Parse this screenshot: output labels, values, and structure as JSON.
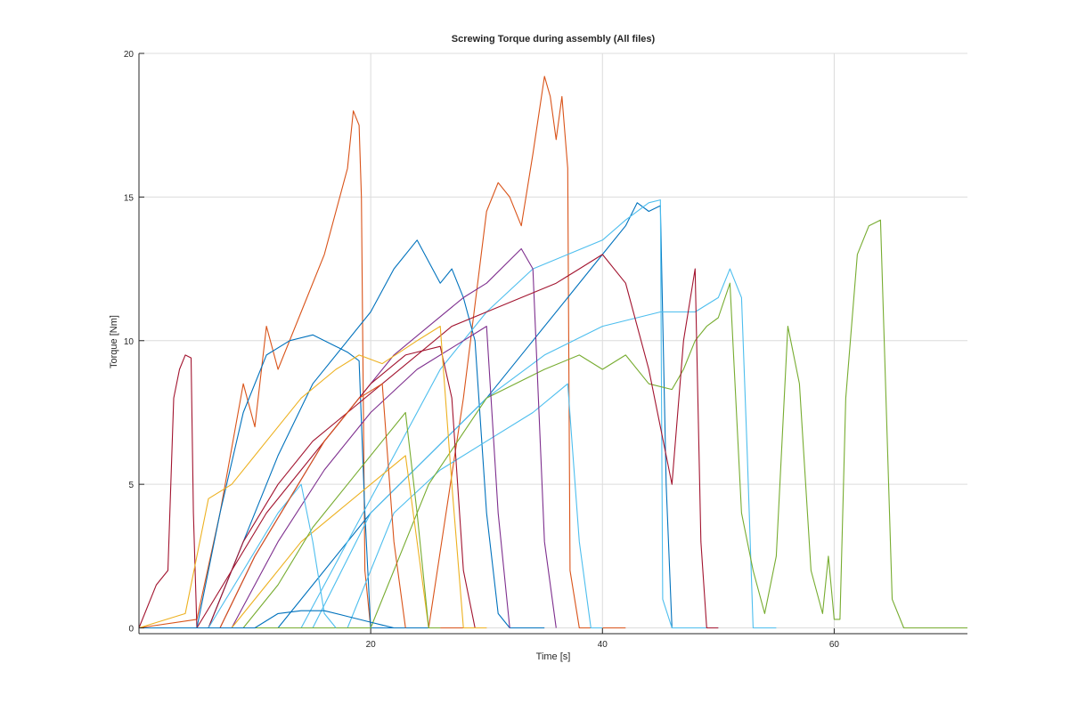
{
  "chart_data": {
    "type": "line",
    "title": "Screwing Torque during assembly (All files)",
    "xlabel": "Time [s]",
    "ylabel": "Torque [Nm]",
    "xlim": [
      0,
      71.5
    ],
    "ylim": [
      -0.2,
      20
    ],
    "xticks": [
      20,
      40,
      60
    ],
    "yticks": [
      0,
      5,
      10,
      15,
      20
    ],
    "grid": true,
    "series": [
      {
        "color": "#D95319",
        "x": [
          0,
          5,
          7,
          9,
          10,
          11,
          12,
          14,
          16,
          17,
          18,
          18.5,
          19,
          19.2,
          19.5,
          20,
          30
        ],
        "y": [
          0,
          0.3,
          4,
          8.5,
          7,
          10.5,
          9,
          11,
          13,
          14.5,
          16,
          18,
          17.5,
          15,
          2,
          0,
          0
        ]
      },
      {
        "color": "#D95319",
        "x": [
          0,
          25,
          28,
          30,
          31,
          32,
          33,
          34,
          35,
          35.5,
          36,
          36.5,
          37,
          37.2,
          38,
          42
        ],
        "y": [
          0,
          0,
          8,
          14.5,
          15.5,
          15,
          14,
          16.5,
          19.2,
          18.5,
          17,
          18.5,
          16,
          2,
          0,
          0
        ]
      },
      {
        "color": "#A2142F",
        "x": [
          0,
          1.5,
          2.5,
          3,
          3.5,
          4,
          4.5,
          4.7,
          5,
          10
        ],
        "y": [
          0,
          1.5,
          2,
          8,
          9,
          9.5,
          9.4,
          4,
          0,
          0
        ]
      },
      {
        "color": "#0072BD",
        "x": [
          0,
          5,
          7,
          9,
          11,
          13,
          15,
          17,
          18,
          19,
          19.5,
          20,
          25
        ],
        "y": [
          0,
          0,
          4,
          7.5,
          9.5,
          10,
          10.2,
          9.8,
          9.6,
          9.3,
          4,
          0,
          0
        ]
      },
      {
        "color": "#0072BD",
        "x": [
          0,
          6,
          9,
          12,
          15,
          18,
          20,
          22,
          24,
          26,
          27,
          28,
          29,
          30,
          31,
          32,
          35
        ],
        "y": [
          0,
          0,
          3,
          6,
          8.5,
          10,
          11,
          12.5,
          13.5,
          12,
          12.5,
          11.5,
          10,
          4,
          0.5,
          0,
          0
        ]
      },
      {
        "color": "#0072BD",
        "x": [
          0,
          12,
          16,
          20,
          25,
          30,
          34,
          37,
          40,
          42,
          43,
          44,
          45,
          45.5,
          46,
          50
        ],
        "y": [
          0,
          0,
          2,
          4,
          6,
          8,
          10,
          11.5,
          13,
          14,
          14.8,
          14.5,
          14.7,
          5,
          0,
          0
        ]
      },
      {
        "color": "#4DBEEE",
        "x": [
          0,
          14,
          18,
          22,
          26,
          30,
          34,
          37,
          40,
          42,
          44,
          45,
          45.2,
          46,
          50
        ],
        "y": [
          0,
          0,
          3,
          6,
          9,
          11,
          12.5,
          13,
          13.5,
          14.2,
          14.8,
          14.9,
          1,
          0,
          0
        ]
      },
      {
        "color": "#4DBEEE",
        "x": [
          0,
          15,
          20,
          25,
          30,
          35,
          40,
          45,
          48,
          50,
          51,
          52,
          52.5,
          53,
          55
        ],
        "y": [
          0,
          0,
          4,
          6,
          8,
          9.5,
          10.5,
          11,
          11,
          11.5,
          12.5,
          11.5,
          6,
          0,
          0
        ]
      },
      {
        "color": "#4DBEEE",
        "x": [
          0,
          18,
          22,
          26,
          30,
          34,
          37,
          38,
          39,
          40
        ],
        "y": [
          0,
          0,
          4,
          5.5,
          6.5,
          7.5,
          8.5,
          3,
          0,
          0
        ]
      },
      {
        "color": "#77AC30",
        "x": [
          0,
          20,
          25,
          30,
          35,
          38,
          40,
          42,
          44,
          46,
          47,
          48,
          49,
          50,
          51,
          52,
          53,
          54,
          55,
          56,
          57,
          58,
          59,
          59.5,
          60,
          60.5,
          61,
          62,
          63,
          64,
          65,
          66,
          71.5
        ],
        "y": [
          0,
          0,
          5,
          8,
          9,
          9.5,
          9,
          9.5,
          8.5,
          8.3,
          9,
          10,
          10.5,
          10.8,
          12,
          4,
          2,
          0.5,
          2.5,
          10.5,
          8.5,
          2,
          0.5,
          2.5,
          0.3,
          0.3,
          8,
          13,
          14,
          14.2,
          1,
          0,
          0
        ]
      },
      {
        "color": "#7E2F8E",
        "x": [
          0,
          7,
          10,
          13,
          16,
          19,
          22,
          25,
          28,
          30,
          32,
          33,
          34,
          35,
          36
        ],
        "y": [
          0,
          0,
          2.5,
          4.5,
          6.5,
          8,
          9.5,
          10.5,
          11.5,
          12,
          12.8,
          13.2,
          12.5,
          3,
          0
        ]
      },
      {
        "color": "#7E2F8E",
        "x": [
          0,
          8,
          12,
          16,
          20,
          24,
          28,
          30,
          31,
          32
        ],
        "y": [
          0,
          0,
          3,
          5.5,
          7.5,
          9,
          10,
          10.5,
          4,
          0
        ]
      },
      {
        "color": "#A2142F",
        "x": [
          0,
          6,
          9,
          12,
          15,
          18,
          21,
          24,
          27,
          30,
          33,
          36,
          38,
          40,
          42,
          44,
          46,
          47,
          48,
          48.5,
          49,
          50
        ],
        "y": [
          0,
          0,
          3,
          5,
          6.5,
          7.5,
          8.5,
          9.5,
          10.5,
          11,
          11.5,
          12,
          12.5,
          13,
          12,
          9,
          5,
          10,
          12.5,
          3,
          0,
          0
        ]
      },
      {
        "color": "#A2142F",
        "x": [
          0,
          5,
          8,
          11,
          14,
          17,
          20,
          23,
          26,
          27,
          28,
          29
        ],
        "y": [
          0,
          0,
          2,
          4,
          5.5,
          7,
          8.5,
          9.5,
          9.8,
          8,
          2,
          0
        ]
      },
      {
        "color": "#EDB120",
        "x": [
          0,
          4,
          6,
          8,
          11,
          14,
          17,
          19,
          21,
          24,
          26,
          27,
          28,
          30
        ],
        "y": [
          0,
          0.5,
          4.5,
          5,
          6.5,
          8,
          9,
          9.5,
          9.2,
          10,
          10.5,
          5,
          0,
          0
        ]
      },
      {
        "color": "#EDB120",
        "x": [
          0,
          8,
          11,
          14,
          17,
          20,
          23,
          24,
          25,
          26
        ],
        "y": [
          0,
          0,
          1.5,
          3,
          4,
          5,
          6,
          3,
          0,
          0
        ]
      },
      {
        "color": "#77AC30",
        "x": [
          0,
          9,
          12,
          15,
          18,
          21,
          23,
          24,
          25,
          26
        ],
        "y": [
          0,
          0,
          1.5,
          3.5,
          5,
          6.5,
          7.5,
          4,
          0,
          0
        ]
      },
      {
        "color": "#4DBEEE",
        "x": [
          0,
          6,
          9,
          12,
          14,
          15,
          16,
          17
        ],
        "y": [
          0,
          0,
          2,
          4,
          5,
          3,
          0.5,
          0
        ]
      },
      {
        "color": "#D95319",
        "x": [
          0,
          7,
          10,
          13,
          16,
          19,
          21,
          22,
          23
        ],
        "y": [
          0,
          0,
          2.5,
          4.5,
          6.5,
          8,
          8.5,
          3,
          0
        ]
      },
      {
        "color": "#0072BD",
        "x": [
          0,
          10,
          12,
          14,
          16,
          18,
          20,
          21,
          22
        ],
        "y": [
          0,
          0,
          0.5,
          0.6,
          0.6,
          0.4,
          0.2,
          0.1,
          0
        ]
      }
    ]
  }
}
